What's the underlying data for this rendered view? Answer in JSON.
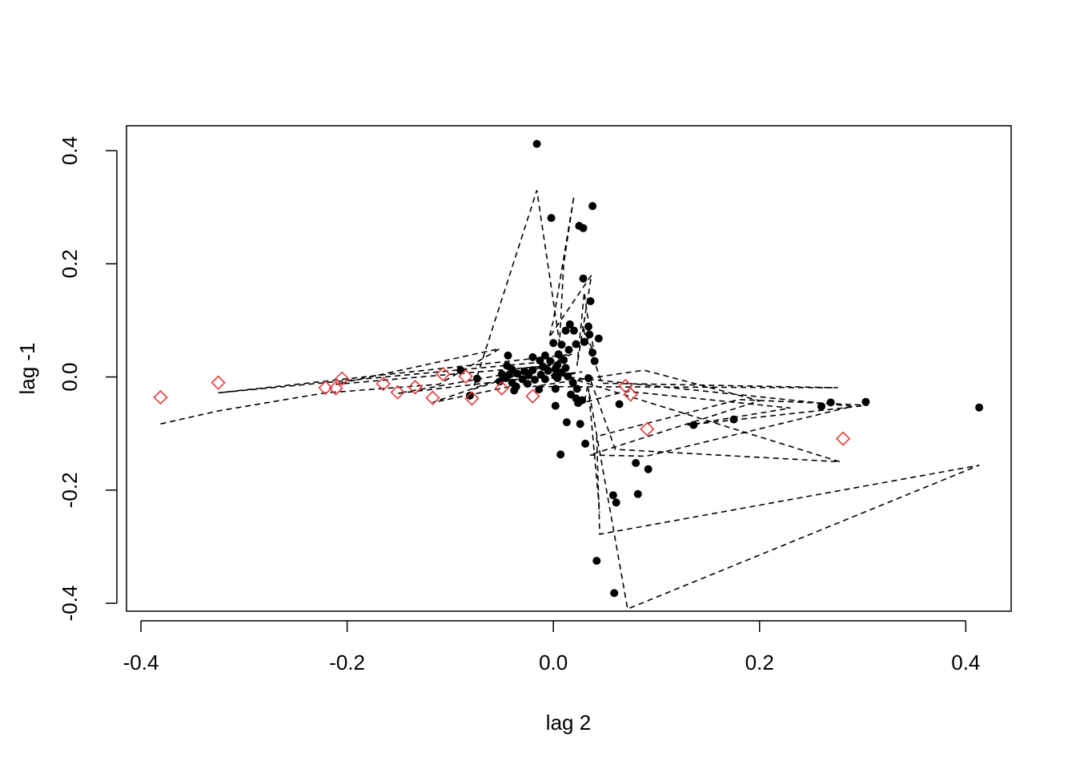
{
  "chart_data": {
    "type": "scatter",
    "title": "",
    "xlabel": "lag 2",
    "ylabel": "lag -1",
    "xlim": [
      -0.414,
      0.444
    ],
    "ylim": [
      -0.414,
      0.444
    ],
    "x_ticks": [
      -0.4,
      -0.2,
      0.0,
      0.2,
      0.4
    ],
    "x_tick_labels": [
      "-0.4",
      "-0.2",
      "0.0",
      "0.2",
      "0.4"
    ],
    "y_ticks": [
      -0.4,
      -0.2,
      0.0,
      0.2,
      0.4
    ],
    "y_tick_labels": [
      "-0.4",
      "-0.2",
      "0.0",
      "0.2",
      "0.4"
    ],
    "grid": false,
    "legend": "none",
    "colors": {
      "black_points": "#000000",
      "red_points": "#e8383b",
      "lines": "#000000"
    },
    "series": [
      {
        "marker": "filled-circle",
        "color": "#000000",
        "points": [
          [
            -0.016,
            0.412
          ],
          [
            -0.002,
            0.281
          ],
          [
            0.038,
            0.302
          ],
          [
            0.025,
            0.267
          ],
          [
            0.029,
            0.263
          ],
          [
            0.029,
            0.174
          ],
          [
            0.036,
            0.134
          ],
          [
            0.016,
            0.093
          ],
          [
            0.012,
            0.082
          ],
          [
            0.02,
            0.082
          ],
          [
            0.034,
            0.089
          ],
          [
            0.035,
            0.075
          ],
          [
            0.044,
            0.068
          ],
          [
            0.03,
            0.062
          ],
          [
            0.0,
            0.06
          ],
          [
            0.008,
            0.057
          ],
          [
            0.022,
            0.058
          ],
          [
            0.015,
            0.048
          ],
          [
            0.038,
            0.043
          ],
          [
            0.04,
            0.028
          ],
          [
            -0.044,
            0.038
          ],
          [
            -0.02,
            0.035
          ],
          [
            -0.008,
            0.038
          ],
          [
            0.005,
            0.04
          ],
          [
            -0.013,
            0.029
          ],
          [
            -0.003,
            0.028
          ],
          [
            0.01,
            0.03
          ],
          [
            0.004,
            0.021
          ],
          [
            -0.01,
            0.018
          ],
          [
            0.002,
            0.014
          ],
          [
            0.012,
            0.016
          ],
          [
            -0.045,
            0.02
          ],
          [
            -0.04,
            0.013
          ],
          [
            -0.028,
            0.01
          ],
          [
            -0.02,
            0.012
          ],
          [
            -0.005,
            0.011
          ],
          [
            0.008,
            0.008
          ],
          [
            -0.05,
            0.005
          ],
          [
            -0.043,
            0.004
          ],
          [
            -0.035,
            0.006
          ],
          [
            -0.024,
            0.003
          ],
          [
            -0.012,
            0.004
          ],
          [
            0.002,
            0.002
          ],
          [
            0.014,
            0.001
          ],
          [
            -0.09,
            0.012
          ],
          [
            -0.074,
            -0.003
          ],
          [
            -0.046,
            -0.002
          ],
          [
            -0.03,
            -0.004
          ],
          [
            -0.018,
            -0.005
          ],
          [
            -0.008,
            -0.004
          ],
          [
            0.004,
            -0.002
          ],
          [
            0.034,
            -0.002
          ],
          [
            -0.052,
            -0.008
          ],
          [
            -0.04,
            -0.01
          ],
          [
            -0.025,
            -0.012
          ],
          [
            0.019,
            -0.01
          ],
          [
            -0.036,
            -0.017
          ],
          [
            -0.014,
            -0.022
          ],
          [
            0.002,
            -0.021
          ],
          [
            0.023,
            -0.021
          ],
          [
            -0.038,
            -0.024
          ],
          [
            0.017,
            -0.031
          ],
          [
            -0.081,
            -0.033
          ],
          [
            0.022,
            -0.038
          ],
          [
            0.028,
            -0.041
          ],
          [
            0.024,
            -0.046
          ],
          [
            0.064,
            -0.048
          ],
          [
            0.002,
            -0.051
          ],
          [
            0.136,
            -0.085
          ],
          [
            0.175,
            -0.075
          ],
          [
            0.013,
            -0.08
          ],
          [
            0.026,
            -0.083
          ],
          [
            0.26,
            -0.052
          ],
          [
            0.269,
            -0.045
          ],
          [
            0.303,
            -0.044
          ],
          [
            0.413,
            -0.054
          ],
          [
            0.031,
            -0.118
          ],
          [
            0.007,
            -0.137
          ],
          [
            0.08,
            -0.152
          ],
          [
            0.092,
            -0.163
          ],
          [
            0.058,
            -0.209
          ],
          [
            0.061,
            -0.222
          ],
          [
            0.082,
            -0.207
          ],
          [
            0.042,
            -0.325
          ],
          [
            0.059,
            -0.382
          ]
        ]
      },
      {
        "marker": "open-diamond",
        "color": "#e8383b",
        "points": [
          [
            -0.381,
            -0.036
          ],
          [
            -0.325,
            -0.01
          ],
          [
            -0.221,
            -0.019
          ],
          [
            -0.211,
            -0.02
          ],
          [
            -0.205,
            -0.003
          ],
          [
            -0.165,
            -0.012
          ],
          [
            -0.151,
            -0.027
          ],
          [
            -0.134,
            -0.018
          ],
          [
            -0.117,
            -0.037
          ],
          [
            -0.107,
            0.005
          ],
          [
            -0.085,
            0.001
          ],
          [
            -0.079,
            -0.038
          ],
          [
            -0.05,
            -0.02
          ],
          [
            -0.02,
            -0.034
          ],
          [
            0.07,
            -0.016
          ],
          [
            0.075,
            -0.031
          ],
          [
            0.091,
            -0.092
          ],
          [
            0.281,
            -0.109
          ]
        ]
      }
    ],
    "lines": {
      "style": "dashed",
      "color": "#000000",
      "path": [
        [
          -0.381,
          -0.083
        ],
        [
          -0.325,
          -0.06
        ],
        [
          -0.221,
          -0.028
        ],
        [
          -0.111,
          -0.013
        ],
        [
          -0.052,
          0.05
        ],
        [
          -0.211,
          -0.013
        ],
        [
          0.003,
          0.021
        ],
        [
          -0.151,
          -0.029
        ],
        [
          0.028,
          0.009
        ],
        [
          -0.117,
          -0.045
        ],
        [
          0.018,
          0.04
        ],
        [
          -0.325,
          -0.028
        ],
        [
          0.01,
          0.03
        ],
        [
          -0.078,
          -0.022
        ],
        [
          -0.016,
          0.33
        ],
        [
          0.006,
          0.06
        ],
        [
          0.01,
          0.2
        ],
        [
          0.02,
          0.32
        ],
        [
          0.0,
          0.1
        ],
        [
          -0.004,
          0.07
        ],
        [
          0.037,
          0.18
        ],
        [
          0.023,
          0.02
        ],
        [
          0.03,
          0.15
        ],
        [
          0.033,
          0.11
        ],
        [
          0.04,
          0.04
        ],
        [
          0.028,
          0.09
        ],
        [
          0.047,
          -0.011
        ],
        [
          0.276,
          -0.019
        ],
        [
          -0.02,
          -0.017
        ],
        [
          0.088,
          0.012
        ],
        [
          0.2,
          -0.042
        ],
        [
          0.035,
          -0.138
        ],
        [
          0.09,
          -0.14
        ],
        [
          0.29,
          -0.052
        ],
        [
          0.013,
          0.0
        ],
        [
          0.278,
          -0.15
        ],
        [
          0.06,
          -0.128
        ],
        [
          0.035,
          0.0
        ],
        [
          0.03,
          -0.045
        ],
        [
          0.07,
          -0.025
        ],
        [
          0.23,
          -0.055
        ],
        [
          0.13,
          -0.085
        ],
        [
          0.305,
          -0.05
        ],
        [
          0.18,
          -0.04
        ],
        [
          0.042,
          -0.105
        ],
        [
          0.045,
          -0.278
        ],
        [
          0.413,
          -0.156
        ],
        [
          0.072,
          -0.41
        ],
        [
          0.034,
          -0.02
        ],
        [
          0.045,
          -0.24
        ]
      ]
    }
  }
}
